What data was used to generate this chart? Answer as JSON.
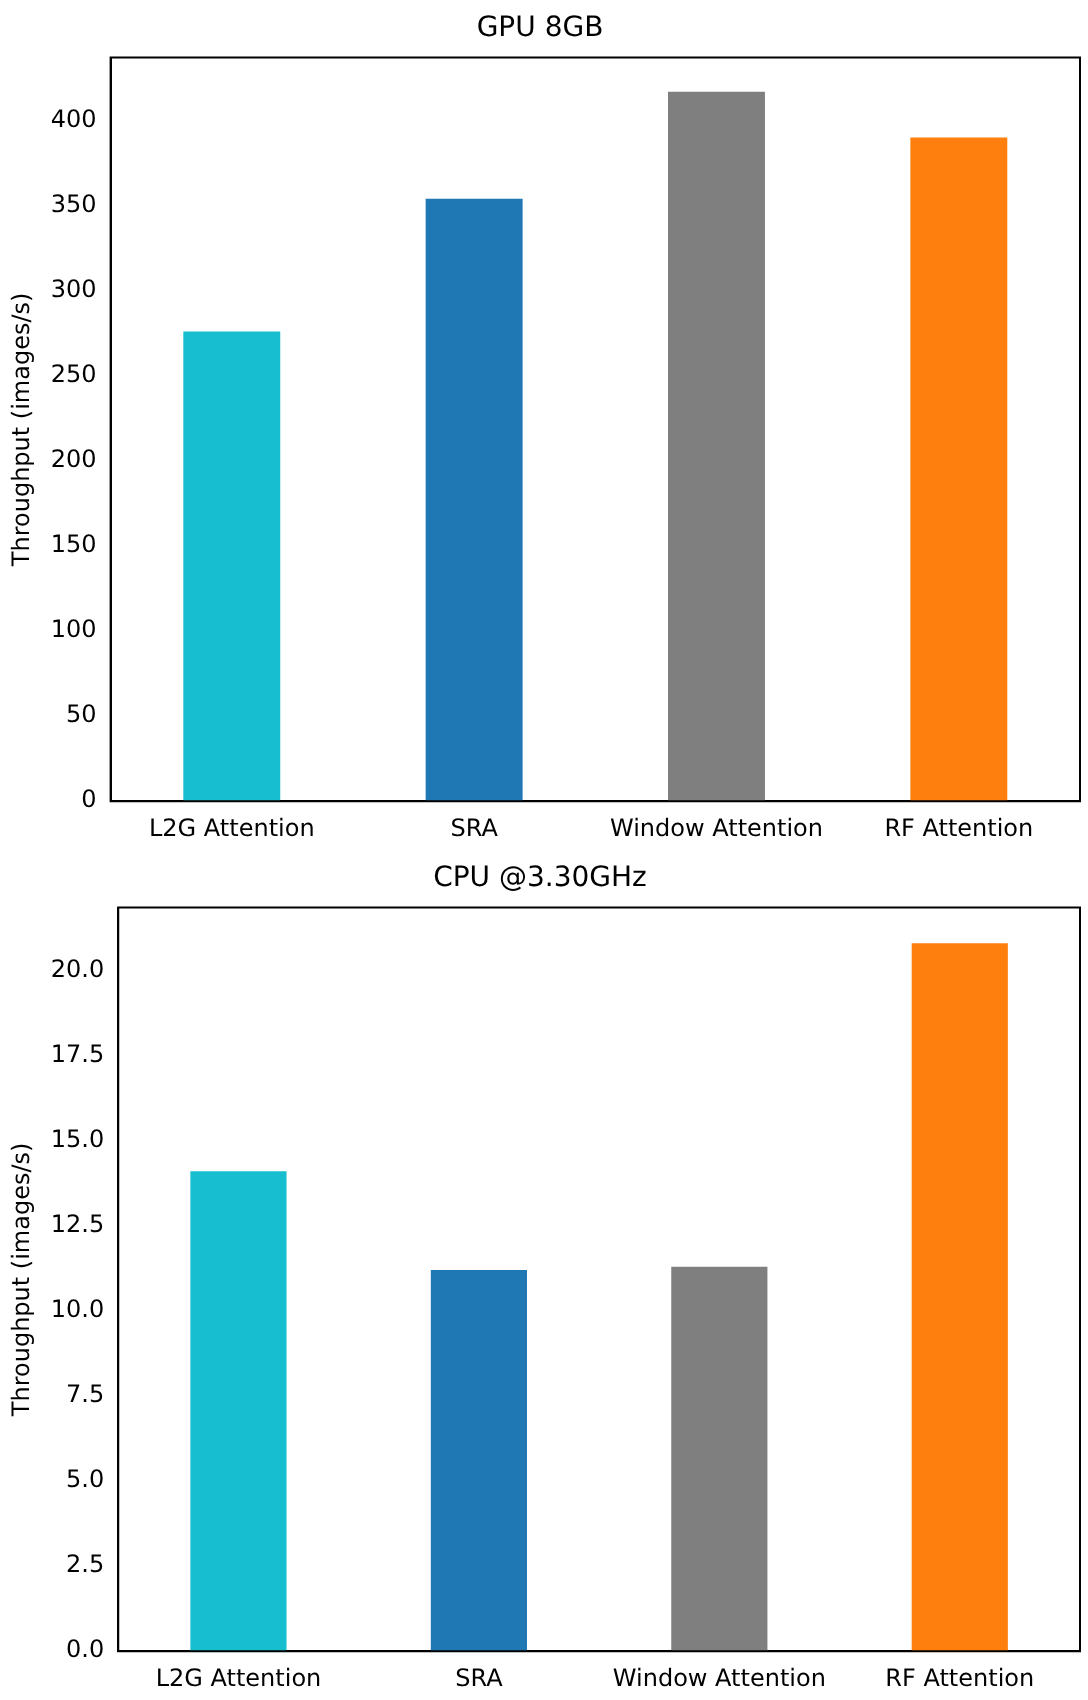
{
  "chart_data": [
    {
      "type": "bar",
      "title": "GPU 8GB",
      "ylabel": "Throughput (images/s)",
      "categories": [
        "L2G Attention",
        "SRA",
        "Window Attention",
        "RF Attention"
      ],
      "values": [
        276,
        354,
        417,
        390
      ],
      "colors": [
        "#17becf",
        "#1f77b4",
        "#7f7f7f",
        "#ff7f0e"
      ],
      "ylim": [
        0,
        437
      ],
      "yticks": [
        0,
        50,
        100,
        150,
        200,
        250,
        300,
        350,
        400
      ],
      "grid": false,
      "legend": false
    },
    {
      "type": "bar",
      "title": "CPU @3.30GHz",
      "ylabel": "Throughput (images/s)",
      "categories": [
        "L2G Attention",
        "SRA",
        "Window Attention",
        "RF Attention"
      ],
      "values": [
        14.1,
        11.2,
        11.3,
        20.8
      ],
      "colors": [
        "#17becf",
        "#1f77b4",
        "#7f7f7f",
        "#ff7f0e"
      ],
      "ylim": [
        0,
        21.85
      ],
      "yticks": [
        {
          "value": 0,
          "label": "0.0"
        },
        {
          "value": 2.5,
          "label": "2.5"
        },
        {
          "value": 5,
          "label": "5.0"
        },
        {
          "value": 7.5,
          "label": "7.5"
        },
        {
          "value": 10,
          "label": "10.0"
        },
        {
          "value": 12.5,
          "label": "12.5"
        },
        {
          "value": 15,
          "label": "15.0"
        },
        {
          "value": 17.5,
          "label": "17.5"
        },
        {
          "value": 20,
          "label": "20.0"
        }
      ],
      "grid": false,
      "legend": false
    }
  ]
}
